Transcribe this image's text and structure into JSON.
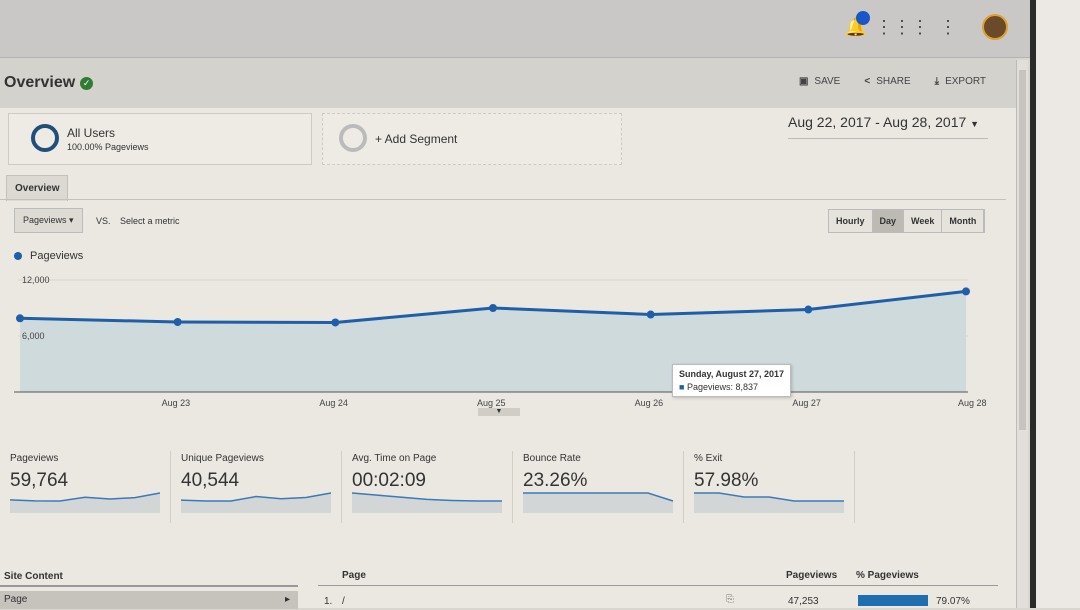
{
  "header": {
    "title": "Overview",
    "actions": [
      "SAVE",
      "SHARE",
      "EXPORT"
    ]
  },
  "segments": [
    {
      "name": "All Users",
      "sub": "100.00% Pageviews"
    },
    {
      "name": "+ Add Segment"
    }
  ],
  "date_range": "Aug 22, 2017 - Aug 28, 2017",
  "tab": "Overview",
  "metric_select": "Pageviews",
  "vs": "VS.",
  "select_metric": "Select a metric",
  "granularity": [
    {
      "label": "Hourly",
      "active": false
    },
    {
      "label": "Day",
      "active": true
    },
    {
      "label": "Week",
      "active": false
    },
    {
      "label": "Month",
      "active": false
    }
  ],
  "tooltip": {
    "title": "Sunday, August 27, 2017",
    "text": "Pageviews: 8,837"
  },
  "chart_data": {
    "type": "area",
    "series": [
      {
        "name": "Pageviews",
        "values": [
          7900,
          7500,
          7450,
          9000,
          8300,
          8837,
          10777
        ]
      }
    ],
    "x": [
      "Aug 22",
      "Aug 23",
      "Aug 24",
      "Aug 25",
      "Aug 26",
      "Aug 27",
      "Aug 28"
    ],
    "x_tick_labels": [
      "",
      "Aug 23",
      "Aug 24",
      "Aug 25",
      "Aug 26",
      "Aug 27",
      "Aug 28"
    ],
    "y_ticks": [
      "12,000",
      "6,000"
    ],
    "ylim": [
      0,
      12000
    ],
    "color": "#1f5fa8",
    "legend": "top-left"
  },
  "metrics": [
    {
      "label": "Pageviews",
      "value": "59,764",
      "trend": [
        7900,
        7500,
        7450,
        9000,
        8300,
        8837,
        10777
      ]
    },
    {
      "label": "Unique Pageviews",
      "value": "40,544",
      "trend": [
        5400,
        5200,
        5200,
        6200,
        5700,
        6000,
        7000
      ]
    },
    {
      "label": "Avg. Time on Page",
      "value": "00:02:09",
      "trend": [
        140,
        136,
        132,
        128,
        126,
        125,
        125
      ]
    },
    {
      "label": "Bounce Rate",
      "value": "23.26%",
      "trend": [
        24,
        24,
        24,
        24,
        24,
        24,
        22
      ]
    },
    {
      "label": "% Exit",
      "value": "57.98%",
      "trend": [
        59,
        59,
        58,
        58,
        57,
        57,
        57
      ]
    }
  ],
  "site_content": {
    "title": "Site Content",
    "row": "Page"
  },
  "table": {
    "headers": [
      "Page",
      "Pageviews",
      "% Pageviews"
    ],
    "rows": [
      {
        "index": "1.",
        "page": "/",
        "pageviews": "47,253",
        "percent": "79.07%",
        "fraction": 0.7907
      }
    ]
  }
}
